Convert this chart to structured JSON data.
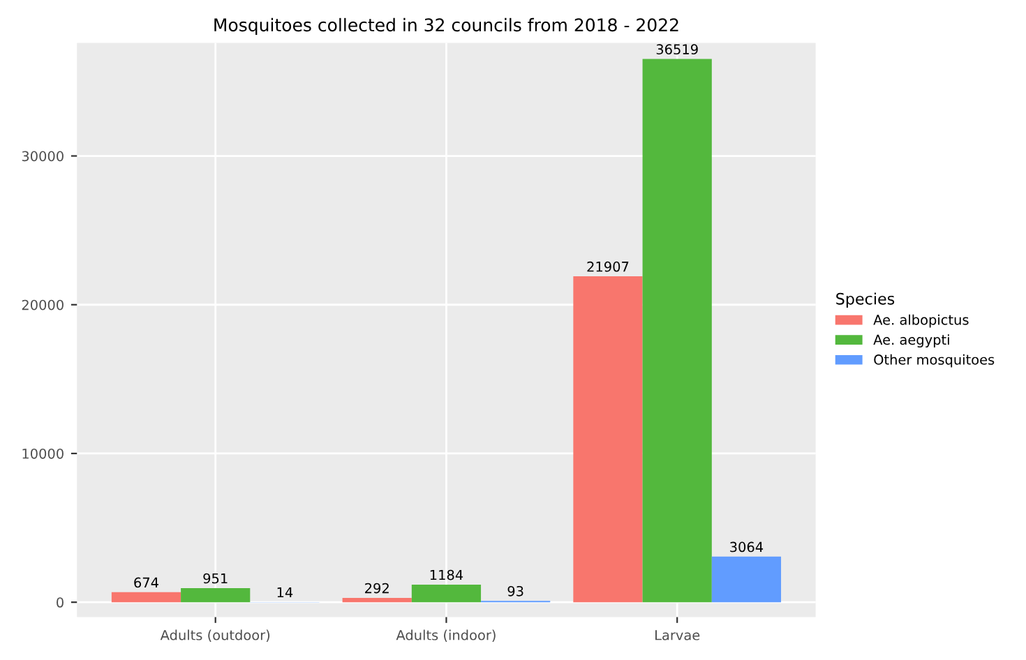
{
  "chart_data": {
    "type": "bar",
    "title": "Mosquitoes collected in 32 councils from 2018 - 2022",
    "categories": [
      "Adults (outdoor)",
      "Adults (indoor)",
      "Larvae"
    ],
    "legend_title": "Species",
    "series": [
      {
        "name": "Ae. albopictus",
        "color": "#f8766d",
        "values": [
          674,
          292,
          21907
        ]
      },
      {
        "name": "Ae. aegypti",
        "color": "#53b83d",
        "values": [
          951,
          1184,
          36519
        ]
      },
      {
        "name": "Other mosquitoes",
        "color": "#619cff",
        "values": [
          14,
          93,
          3064
        ]
      }
    ],
    "ylim": [
      -1000,
      37600
    ],
    "yticks": [
      0,
      10000,
      20000,
      30000
    ],
    "data_labels": true,
    "grid": true,
    "legend": "right"
  }
}
